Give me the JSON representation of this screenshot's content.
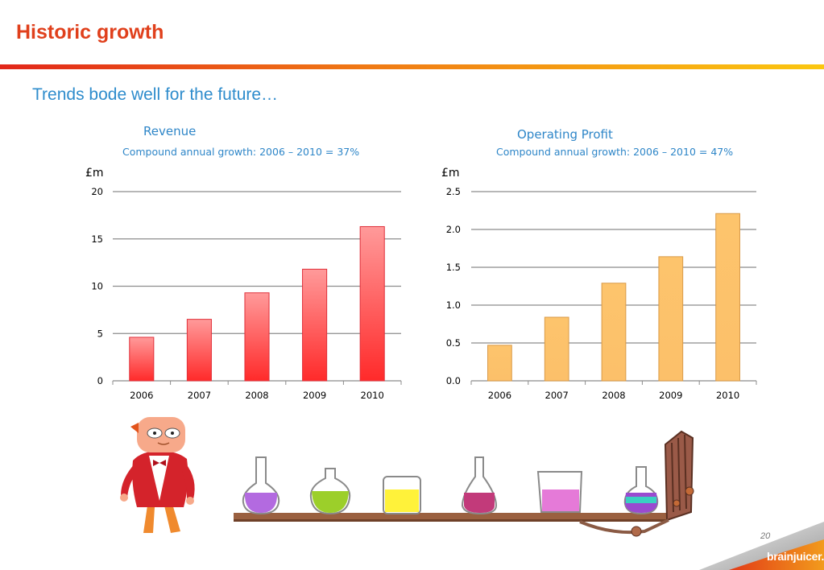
{
  "slide": {
    "title": "Historic growth",
    "subtitle": "Trends bode well for the future…",
    "page_number": "20",
    "logo": "brainjuicer."
  },
  "colors": {
    "title": "#e0401c",
    "subtitle": "#2e8ccc",
    "revenue_bar": "#ff4d4d",
    "profit_bar": "#fdc26a"
  },
  "chart_data": [
    {
      "type": "bar",
      "title": "Revenue",
      "subtitle": "Compound annual growth: 2006 – 2010 = 37%",
      "ylabel": "£m",
      "categories": [
        "2006",
        "2007",
        "2008",
        "2009",
        "2010"
      ],
      "values": [
        4.6,
        6.5,
        9.3,
        11.8,
        16.3
      ],
      "ylim": [
        0,
        20
      ],
      "yticks": [
        "0",
        "5",
        "10",
        "15",
        "20"
      ],
      "ytick_values": [
        0,
        5,
        10,
        15,
        20
      ],
      "grid": true,
      "color": "#ff4d4d"
    },
    {
      "type": "bar",
      "title": "Operating Profit",
      "subtitle": "Compound annual growth: 2006 – 2010 = 47%",
      "ylabel": "£m",
      "categories": [
        "2006",
        "2007",
        "2008",
        "2009",
        "2010"
      ],
      "values": [
        0.47,
        0.84,
        1.29,
        1.64,
        2.21
      ],
      "ylim": [
        0,
        2.5
      ],
      "yticks": [
        "0.0",
        "0.5",
        "1.0",
        "1.5",
        "2.0",
        "2.5"
      ],
      "ytick_values": [
        0,
        0.5,
        1,
        1.5,
        2,
        2.5
      ],
      "grid": true,
      "color": "#fdc26a"
    }
  ]
}
